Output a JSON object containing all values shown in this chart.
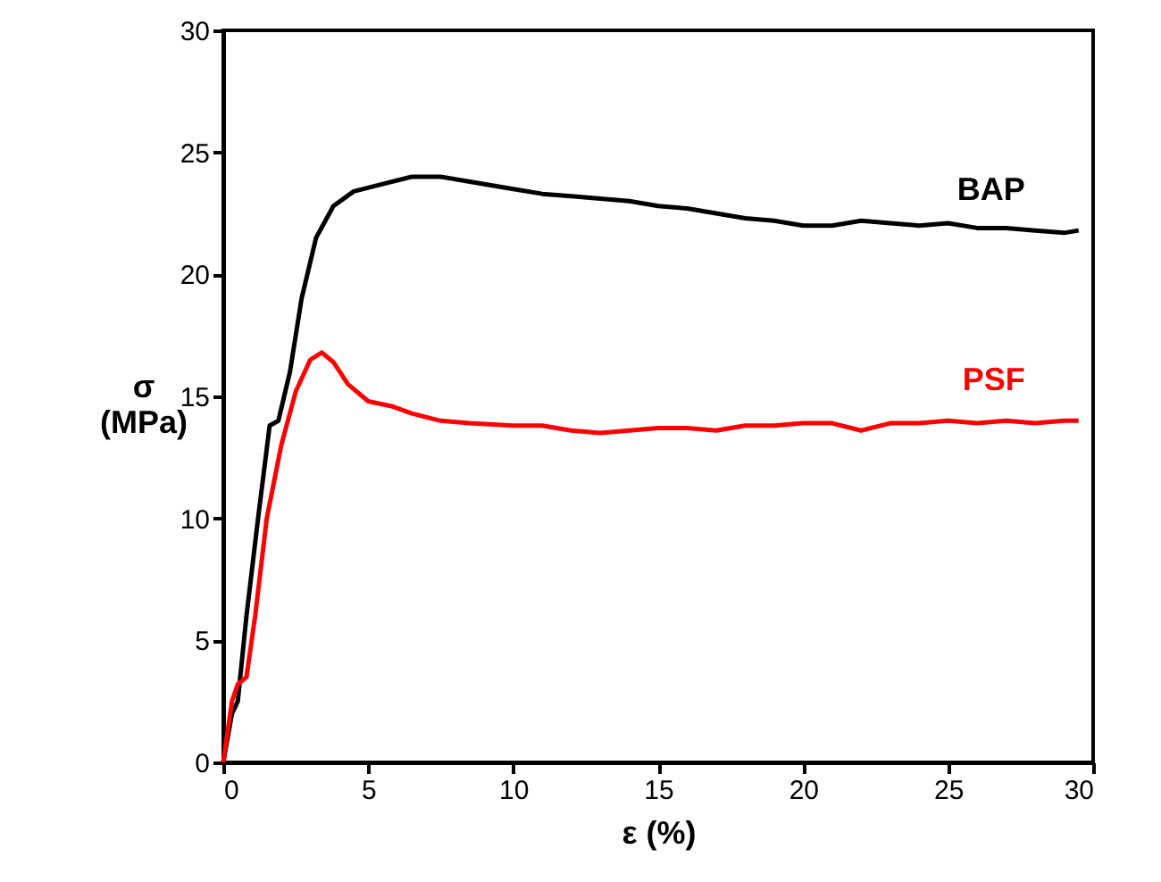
{
  "chart_data": {
    "type": "line",
    "xlabel": "ε (%)",
    "ylabel": "σ\n(MPa)",
    "xlim": [
      0,
      30
    ],
    "xticks": [
      0,
      5,
      10,
      15,
      20,
      25,
      30
    ],
    "ylim": [
      0,
      30
    ],
    "yticks": [
      0,
      5,
      10,
      15,
      20,
      25,
      30
    ],
    "grid": false,
    "legend": false,
    "marker": "none",
    "line_style": "solid",
    "series": [
      {
        "name": "BAP",
        "color": "#000000",
        "x": [
          0,
          0.3,
          0.5,
          0.8,
          1.2,
          1.6,
          1.9,
          2.3,
          2.7,
          3.2,
          3.8,
          4.5,
          5.5,
          6.5,
          7.5,
          8.5,
          10,
          11,
          12,
          13,
          14,
          15,
          16,
          17,
          18,
          19,
          20,
          21,
          22,
          23,
          24,
          25,
          26,
          27,
          28,
          29,
          29.5
        ],
        "values": [
          0,
          2,
          2.5,
          6,
          10,
          13.8,
          14,
          16,
          19,
          21.5,
          22.8,
          23.4,
          23.7,
          24,
          24,
          23.8,
          23.5,
          23.3,
          23.2,
          23.1,
          23,
          22.8,
          22.7,
          22.5,
          22.3,
          22.2,
          22,
          22,
          22.2,
          22.1,
          22,
          22.1,
          21.9,
          21.9,
          21.8,
          21.7,
          21.8
        ]
      },
      {
        "name": "PSF",
        "color": "#ff0000",
        "x": [
          0,
          0.3,
          0.5,
          0.8,
          1.1,
          1.5,
          2,
          2.5,
          3,
          3.4,
          3.8,
          4.3,
          5,
          5.8,
          6.5,
          7.5,
          8.5,
          10,
          11,
          12,
          13,
          14,
          15,
          16,
          17,
          18,
          19,
          20,
          21,
          22,
          23,
          24,
          25,
          26,
          27,
          28,
          29,
          29.5
        ],
        "values": [
          0,
          2.5,
          3.2,
          3.5,
          6,
          10,
          13,
          15.2,
          16.5,
          16.8,
          16.4,
          15.5,
          14.8,
          14.6,
          14.3,
          14,
          13.9,
          13.8,
          13.8,
          13.6,
          13.5,
          13.6,
          13.7,
          13.7,
          13.6,
          13.8,
          13.8,
          13.9,
          13.9,
          13.6,
          13.9,
          13.9,
          14,
          13.9,
          14,
          13.9,
          14,
          14
        ]
      }
    ]
  }
}
